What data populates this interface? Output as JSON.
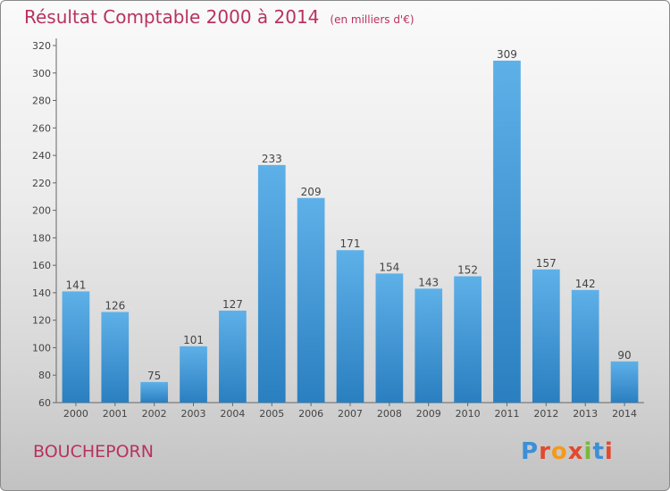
{
  "header": {
    "title": "Résultat Comptable 2000 à 2014",
    "unit": "(en milliers d'€)"
  },
  "footer": {
    "place": "BOUCHEPORN",
    "logo": "Proxiti"
  },
  "colors": {
    "title": "#b8325e",
    "bar_light": "#5eb0e8",
    "bar_dark": "#2a7fc0",
    "logo_letters": [
      "#3d8fd6",
      "#e2492f",
      "#f39a1c",
      "#e2492f",
      "#7ab83a",
      "#3d8fd6",
      "#e2492f"
    ]
  },
  "chart_data": {
    "type": "bar",
    "title": "Résultat Comptable 2000 à 2014",
    "subtitle": "(en milliers d'€)",
    "categories": [
      "2000",
      "2001",
      "2002",
      "2003",
      "2004",
      "2005",
      "2006",
      "2007",
      "2008",
      "2009",
      "2010",
      "2011",
      "2012",
      "2013",
      "2014"
    ],
    "values": [
      141,
      126,
      75,
      101,
      127,
      233,
      209,
      171,
      154,
      143,
      152,
      309,
      157,
      142,
      90
    ],
    "ylim": [
      60,
      320
    ],
    "yticks": [
      60,
      80,
      100,
      120,
      140,
      160,
      180,
      200,
      220,
      240,
      260,
      280,
      300,
      320
    ],
    "grid": false,
    "data_labels": true
  }
}
